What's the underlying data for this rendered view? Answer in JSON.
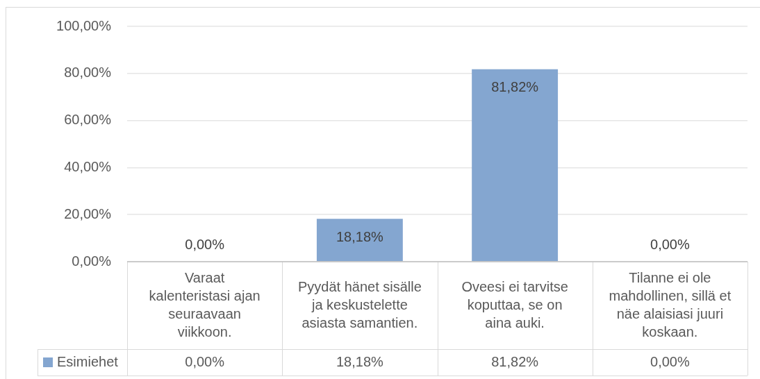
{
  "chart_data": {
    "type": "bar",
    "categories": [
      "Varaat kalenteristasi ajan seuraavaan viikkoon.",
      "Pyydät hänet sisälle ja keskustelette asiasta samantien.",
      "Oveesi ei tarvitse koputtaa, se on aina auki.",
      "Tilanne ei ole mahdollinen, sillä et näe alaisiasi juuri koskaan."
    ],
    "series": [
      {
        "name": "Esimiehet",
        "color": "#84a6d0",
        "values": [
          0,
          18.18,
          81.82,
          0
        ],
        "value_labels": [
          "0,00%",
          "18,18%",
          "81,82%",
          "0,00%"
        ]
      }
    ],
    "ylim": [
      0,
      100
    ],
    "yticks": [
      {
        "value": 0,
        "label": "0,00%"
      },
      {
        "value": 20,
        "label": "20,00%"
      },
      {
        "value": 40,
        "label": "40,00%"
      },
      {
        "value": 60,
        "label": "60,00%"
      },
      {
        "value": 80,
        "label": "80,00%"
      },
      {
        "value": 100,
        "label": "100,00%"
      }
    ],
    "grid": "y",
    "legend": "bottom"
  }
}
